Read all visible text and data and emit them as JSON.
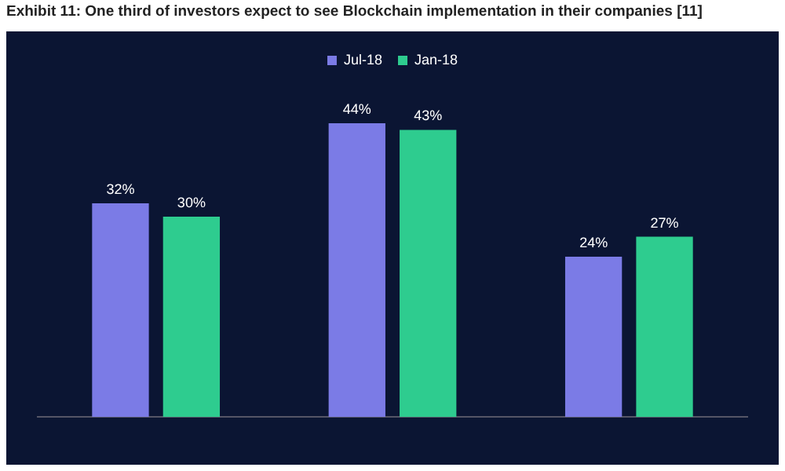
{
  "chart_data": {
    "type": "bar",
    "title": "Exhibit 11: One third of investors expect to see Blockchain implementation in their companies [11]",
    "categories": [
      null,
      null,
      null
    ],
    "series": [
      {
        "name": "Jul-18",
        "color": "#7b7be6",
        "values": [
          32,
          44,
          24
        ],
        "value_labels": [
          "32%",
          "44%",
          "24%"
        ]
      },
      {
        "name": "Jan-18",
        "color": "#2ecc8f",
        "values": [
          30,
          43,
          27
        ],
        "value_labels": [
          "30%",
          "43%",
          "27%"
        ]
      }
    ],
    "legend": "top",
    "grid": false
  }
}
